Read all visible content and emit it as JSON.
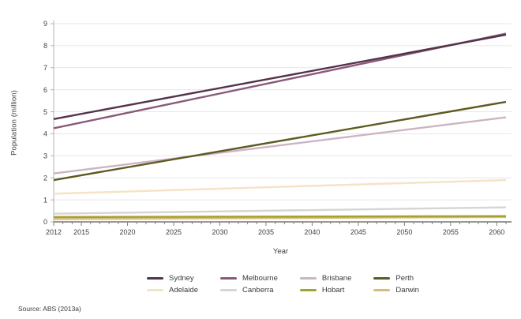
{
  "chart_data": {
    "type": "line",
    "title": "",
    "xlabel": "Year",
    "ylabel": "Population (million)",
    "x": [
      2012,
      2061
    ],
    "xlim": [
      2012,
      2061
    ],
    "ylim": [
      0,
      9
    ],
    "xticks": [
      2012,
      2015,
      2020,
      2025,
      2030,
      2035,
      2040,
      2045,
      2050,
      2055,
      2060
    ],
    "yticks": [
      0,
      1,
      2,
      3,
      4,
      5,
      6,
      7,
      8,
      9
    ],
    "grid": "horizontal-only",
    "legend_position": "bottom-center",
    "series": [
      {
        "name": "Sydney",
        "color": "#54334a",
        "values": [
          4.67,
          8.5
        ]
      },
      {
        "name": "Melbourne",
        "color": "#8a5a7a",
        "values": [
          4.25,
          8.55
        ]
      },
      {
        "name": "Brisbane",
        "color": "#ccb4c4",
        "values": [
          2.2,
          4.75
        ]
      },
      {
        "name": "Perth",
        "color": "#5d5b21",
        "values": [
          1.9,
          5.45
        ]
      },
      {
        "name": "Adelaide",
        "color": "#f6e2c4",
        "values": [
          1.28,
          1.9
        ]
      },
      {
        "name": "Canberra",
        "color": "#d6d4d4",
        "values": [
          0.37,
          0.66
        ]
      },
      {
        "name": "Hobart",
        "color": "#a5a233",
        "values": [
          0.22,
          0.26
        ]
      },
      {
        "name": "Darwin",
        "color": "#d8bc7d",
        "values": [
          0.13,
          0.22
        ]
      }
    ]
  },
  "source": "Source: ABS (2013a)"
}
